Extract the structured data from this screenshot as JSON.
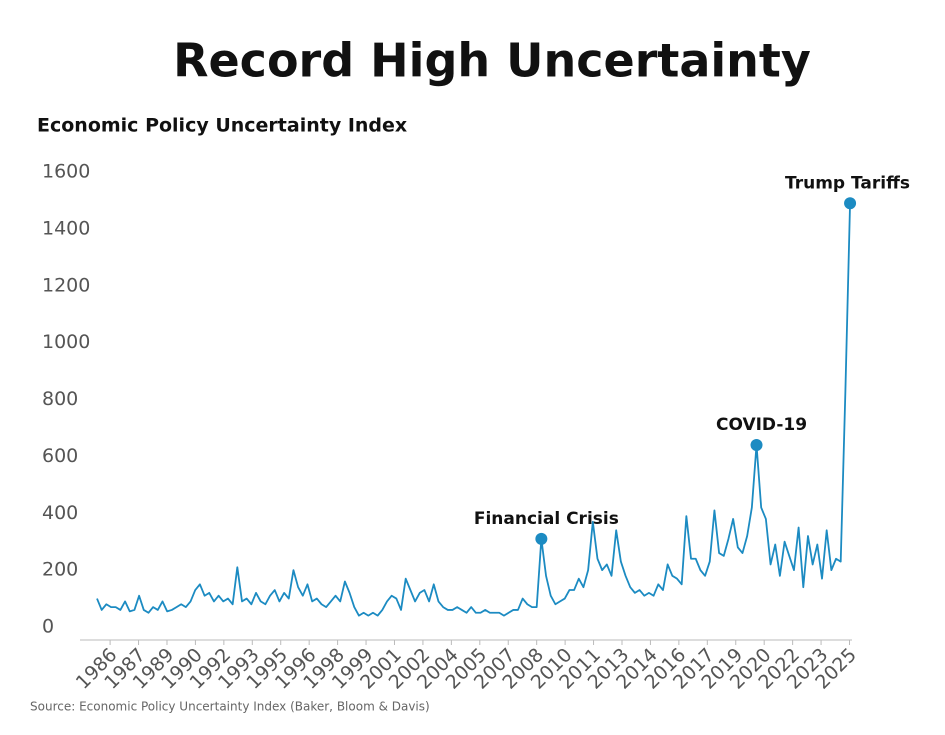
{
  "chart_data": {
    "type": "line",
    "title": "Record High Uncertainty",
    "y_label": "Economic Policy Uncertainty Index",
    "source": "Source: Economic Policy Uncertainty Index (Baker, Bloom & Davis)",
    "color": "#1c8bc2",
    "xlim": [
      1985,
      2025.3
    ],
    "ylim": [
      0,
      1600
    ],
    "yticks": [
      0,
      200,
      400,
      600,
      800,
      1000,
      1200,
      1400,
      1600
    ],
    "xticks": [
      {
        "value": 1985.7,
        "label": "1986"
      },
      {
        "value": 1987.22,
        "label": "1987"
      },
      {
        "value": 1988.74,
        "label": "1989"
      },
      {
        "value": 1990.26,
        "label": "1990"
      },
      {
        "value": 1991.78,
        "label": "1992"
      },
      {
        "value": 1993.3,
        "label": "1993"
      },
      {
        "value": 1994.82,
        "label": "1995"
      },
      {
        "value": 1996.34,
        "label": "1996"
      },
      {
        "value": 1997.86,
        "label": "1998"
      },
      {
        "value": 1999.38,
        "label": "1999"
      },
      {
        "value": 2000.9,
        "label": "2001"
      },
      {
        "value": 2002.42,
        "label": "2002"
      },
      {
        "value": 2003.94,
        "label": "2004"
      },
      {
        "value": 2005.46,
        "label": "2005"
      },
      {
        "value": 2006.98,
        "label": "2007"
      },
      {
        "value": 2008.5,
        "label": "2008"
      },
      {
        "value": 2010.02,
        "label": "2010"
      },
      {
        "value": 2011.54,
        "label": "2011"
      },
      {
        "value": 2013.06,
        "label": "2013"
      },
      {
        "value": 2014.58,
        "label": "2014"
      },
      {
        "value": 2016.1,
        "label": "2016"
      },
      {
        "value": 2017.62,
        "label": "2017"
      },
      {
        "value": 2019.14,
        "label": "2019"
      },
      {
        "value": 2020.66,
        "label": "2020"
      },
      {
        "value": 2022.18,
        "label": "2022"
      },
      {
        "value": 2023.7,
        "label": "2023"
      },
      {
        "value": 2025.22,
        "label": "2025"
      }
    ],
    "x": [
      1985,
      1985.25,
      1985.5,
      1985.75,
      1986,
      1986.25,
      1986.5,
      1986.75,
      1987,
      1987.25,
      1987.5,
      1987.75,
      1988,
      1988.25,
      1988.5,
      1988.75,
      1989,
      1989.25,
      1989.5,
      1989.75,
      1990,
      1990.25,
      1990.5,
      1990.75,
      1991,
      1991.25,
      1991.5,
      1991.75,
      1992,
      1992.25,
      1992.5,
      1992.75,
      1993,
      1993.25,
      1993.5,
      1993.75,
      1994,
      1994.25,
      1994.5,
      1994.75,
      1995,
      1995.25,
      1995.5,
      1995.75,
      1996,
      1996.25,
      1996.5,
      1996.75,
      1997,
      1997.25,
      1997.5,
      1997.75,
      1998,
      1998.25,
      1998.5,
      1998.75,
      1999,
      1999.25,
      1999.5,
      1999.75,
      2000,
      2000.25,
      2000.5,
      2000.75,
      2001,
      2001.25,
      2001.5,
      2001.75,
      2002,
      2002.25,
      2002.5,
      2002.75,
      2003,
      2003.25,
      2003.5,
      2003.75,
      2004,
      2004.25,
      2004.5,
      2004.75,
      2005,
      2005.25,
      2005.5,
      2005.75,
      2006,
      2006.25,
      2006.5,
      2006.75,
      2007,
      2007.25,
      2007.5,
      2007.75,
      2008,
      2008.25,
      2008.5,
      2008.75,
      2009,
      2009.25,
      2009.5,
      2009.75,
      2010,
      2010.25,
      2010.5,
      2010.75,
      2011,
      2011.25,
      2011.5,
      2011.75,
      2012,
      2012.25,
      2012.5,
      2012.75,
      2013,
      2013.25,
      2013.5,
      2013.75,
      2014,
      2014.25,
      2014.5,
      2014.75,
      2015,
      2015.25,
      2015.5,
      2015.75,
      2016,
      2016.25,
      2016.5,
      2016.75,
      2017,
      2017.25,
      2017.5,
      2017.75,
      2018,
      2018.25,
      2018.5,
      2018.75,
      2019,
      2019.25,
      2019.5,
      2019.75,
      2020,
      2020.25,
      2020.5,
      2020.75,
      2021,
      2021.25,
      2021.5,
      2021.75,
      2022,
      2022.25,
      2022.5,
      2022.75,
      2023,
      2023.25,
      2023.5,
      2023.75,
      2024,
      2024.25,
      2024.5,
      2024.75,
      2025,
      2025.25
    ],
    "values": [
      100,
      60,
      80,
      70,
      70,
      60,
      90,
      55,
      60,
      110,
      60,
      50,
      70,
      60,
      90,
      55,
      60,
      70,
      80,
      70,
      90,
      130,
      150,
      110,
      120,
      90,
      110,
      90,
      100,
      80,
      210,
      90,
      100,
      80,
      120,
      90,
      80,
      110,
      130,
      90,
      120,
      100,
      200,
      140,
      110,
      150,
      90,
      100,
      80,
      70,
      90,
      110,
      90,
      160,
      120,
      70,
      40,
      50,
      40,
      50,
      40,
      60,
      90,
      110,
      100,
      60,
      170,
      130,
      90,
      120,
      130,
      90,
      150,
      90,
      70,
      60,
      60,
      70,
      60,
      50,
      70,
      50,
      50,
      60,
      50,
      50,
      50,
      40,
      50,
      60,
      60,
      100,
      80,
      70,
      70,
      310,
      180,
      110,
      80,
      90,
      100,
      130,
      130,
      170,
      140,
      200,
      370,
      240,
      200,
      220,
      180,
      340,
      230,
      180,
      140,
      120,
      130,
      110,
      120,
      110,
      150,
      130,
      220,
      180,
      170,
      150,
      390,
      240,
      240,
      200,
      180,
      230,
      410,
      260,
      250,
      310,
      380,
      280,
      260,
      320,
      420,
      640,
      420,
      380,
      220,
      290,
      180,
      300,
      250,
      200,
      350,
      140,
      320,
      220,
      290,
      170,
      340,
      200,
      240,
      230,
      830,
      1490
    ],
    "annotations": [
      {
        "text": "Financial Crisis",
        "x": 2008.75
      },
      {
        "text": "COVID-19",
        "x": 2020.25
      },
      {
        "text": "Trump Tariffs",
        "x": 2025.25
      }
    ]
  }
}
